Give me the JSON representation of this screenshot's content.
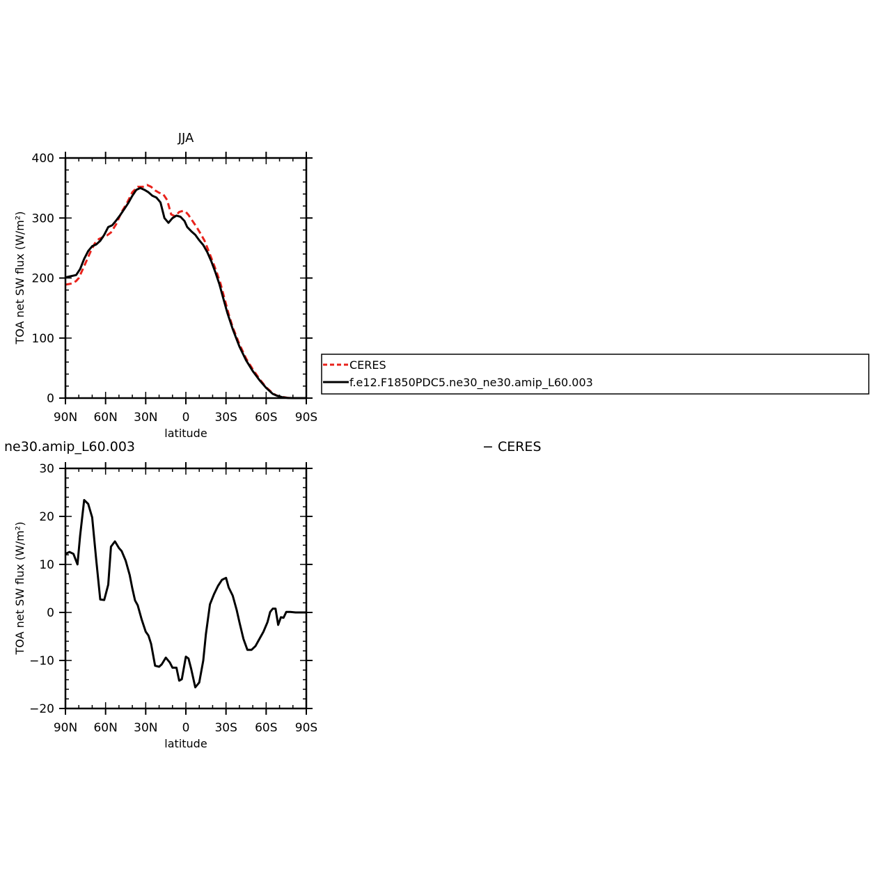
{
  "chart_data": [
    {
      "type": "line",
      "title": "JJA",
      "xlabel": "latitude",
      "ylabel": "TOA net SW flux (W/m²)",
      "xlim": [
        90,
        -90
      ],
      "ylim": [
        0,
        400
      ],
      "xticks": [
        {
          "value": 90,
          "label": "90N"
        },
        {
          "value": 60,
          "label": "60N"
        },
        {
          "value": 30,
          "label": "30N"
        },
        {
          "value": 0,
          "label": "0"
        },
        {
          "value": -30,
          "label": "30S"
        },
        {
          "value": -60,
          "label": "60S"
        },
        {
          "value": -90,
          "label": "90S"
        }
      ],
      "yticks": [
        0,
        100,
        200,
        300,
        400
      ],
      "grid": false,
      "legend": {
        "placement": "right",
        "entries": [
          {
            "label": "CERES",
            "color": "#e8221b",
            "dash": "dashed"
          },
          {
            "label": "f.e12.F1850PDC5.ne30_ne30.amip_L60.003",
            "color": "#000000",
            "dash": "solid"
          }
        ]
      },
      "series": [
        {
          "name": "CERES",
          "color": "#e8221b",
          "dash": "dashed",
          "x": [
            90,
            85,
            82,
            80,
            77,
            74,
            71,
            68,
            65,
            62,
            59,
            56,
            52,
            48,
            44,
            40,
            36,
            32,
            29,
            26,
            23,
            20,
            17,
            14,
            11,
            8,
            5,
            2,
            0,
            -2,
            -5,
            -8,
            -11,
            -14,
            -17,
            -20,
            -23,
            -26,
            -29,
            -32,
            -35,
            -40,
            -45,
            -50,
            -55,
            -60,
            -65,
            -68,
            -72,
            -76,
            -80,
            -85,
            -90
          ],
          "values": [
            189,
            191,
            195,
            200,
            215,
            230,
            245,
            258,
            265,
            268,
            271,
            276,
            290,
            310,
            325,
            343,
            352,
            352,
            355,
            352,
            346,
            342,
            340,
            330,
            306,
            303,
            310,
            312,
            310,
            305,
            295,
            285,
            274,
            262,
            245,
            228,
            210,
            190,
            165,
            140,
            118,
            90,
            66,
            48,
            32,
            18,
            8,
            4,
            2,
            0.5,
            0,
            0,
            0
          ]
        },
        {
          "name": "f.e12.F1850PDC5.ne30_ne30.amip_L60.003",
          "color": "#000000",
          "dash": "solid",
          "x": [
            90,
            86,
            82,
            79,
            76,
            73,
            70,
            67,
            64,
            61,
            58,
            55,
            52,
            49,
            46,
            43,
            40,
            37,
            34,
            31,
            28,
            25,
            22,
            19,
            16,
            13,
            10,
            7,
            4,
            1,
            -1,
            -4,
            -7,
            -10,
            -13,
            -16,
            -19,
            -22,
            -25,
            -28,
            -31,
            -35,
            -40,
            -45,
            -50,
            -55,
            -60,
            -65,
            -68,
            -72,
            -76,
            -80,
            -85,
            -90
          ],
          "values": [
            201,
            203,
            205,
            215,
            232,
            245,
            253,
            256,
            262,
            272,
            285,
            288,
            296,
            305,
            315,
            325,
            337,
            347,
            350,
            347,
            343,
            337,
            334,
            326,
            300,
            292,
            300,
            304,
            302,
            295,
            285,
            278,
            272,
            263,
            255,
            243,
            228,
            210,
            190,
            166,
            142,
            115,
            86,
            63,
            45,
            30,
            17,
            7,
            4,
            1.5,
            0.3,
            0,
            0,
            0
          ]
        }
      ]
    },
    {
      "type": "line",
      "title": "ne30.amip_L60.003",
      "title_right": "− CERES",
      "xlabel": "latitude",
      "ylabel": "TOA net SW flux (W/m²)",
      "xlim": [
        90,
        -90
      ],
      "ylim": [
        -20,
        30
      ],
      "xticks": [
        {
          "value": 90,
          "label": "90N"
        },
        {
          "value": 60,
          "label": "60N"
        },
        {
          "value": 30,
          "label": "30N"
        },
        {
          "value": 0,
          "label": "0"
        },
        {
          "value": -30,
          "label": "30S"
        },
        {
          "value": -60,
          "label": "60S"
        },
        {
          "value": -90,
          "label": "90S"
        }
      ],
      "yticks": [
        -20,
        -10,
        0,
        10,
        20,
        30
      ],
      "grid": false,
      "series": [
        {
          "color": "#000000",
          "dash": "solid",
          "x": [
            90,
            87,
            84,
            81,
            79,
            76,
            73,
            70,
            67,
            64,
            61,
            58,
            56,
            53,
            50,
            48,
            45,
            42,
            40,
            38,
            36,
            33,
            30,
            28,
            26,
            23,
            20,
            18,
            15,
            12,
            10,
            7,
            5,
            3,
            0,
            -2,
            -4,
            -7,
            -10,
            -13,
            -15,
            -18,
            -21,
            -24,
            -27,
            -30,
            -32,
            -35,
            -38,
            -40,
            -43,
            -46,
            -49,
            -52,
            -55,
            -58,
            -61,
            -63,
            -65,
            -67,
            -69,
            -71,
            -73,
            -75,
            -78,
            -82,
            -86,
            -90
          ],
          "values": [
            12.2,
            12.6,
            12.2,
            10.0,
            16.0,
            23.4,
            22.6,
            19.8,
            11.0,
            2.7,
            2.6,
            5.8,
            13.7,
            14.8,
            13.4,
            12.8,
            10.8,
            7.8,
            5.0,
            2.5,
            1.5,
            -1.5,
            -4.0,
            -4.8,
            -6.5,
            -11.1,
            -11.3,
            -10.8,
            -9.4,
            -10.4,
            -11.5,
            -11.5,
            -14.2,
            -13.9,
            -9.2,
            -9.6,
            -11.8,
            -15.6,
            -14.6,
            -10.0,
            -4.5,
            1.7,
            3.8,
            5.5,
            6.8,
            7.2,
            5.2,
            3.5,
            0.5,
            -2.0,
            -5.5,
            -7.8,
            -7.8,
            -7.0,
            -5.5,
            -4.0,
            -2.0,
            0.1,
            0.8,
            0.8,
            -2.6,
            -1.0,
            -1.1,
            0.1,
            0.1,
            0,
            0,
            0
          ]
        }
      ]
    }
  ]
}
